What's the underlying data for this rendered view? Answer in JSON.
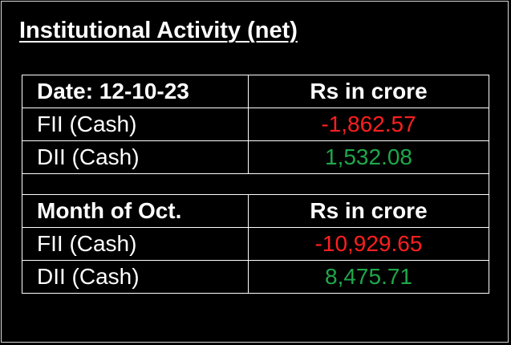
{
  "title": "Institutional Activity (net)",
  "colors": {
    "background": "#000000",
    "text": "#ffffff",
    "negative": "#ff1f1f",
    "positive": "#1fa74a"
  },
  "daily": {
    "label": "Date: 12-10-23",
    "unit_header": "Rs in crore",
    "rows": [
      {
        "label": "FII (Cash)",
        "value": "-1,862.57",
        "sign": "negative"
      },
      {
        "label": "DII (Cash)",
        "value": "1,532.08",
        "sign": "positive"
      }
    ]
  },
  "monthly": {
    "label": "Month of Oct.",
    "unit_header": "Rs in crore",
    "rows": [
      {
        "label": "FII (Cash)",
        "value": "-10,929.65",
        "sign": "negative"
      },
      {
        "label": "DII (Cash)",
        "value": "8,475.71",
        "sign": "positive"
      }
    ]
  }
}
